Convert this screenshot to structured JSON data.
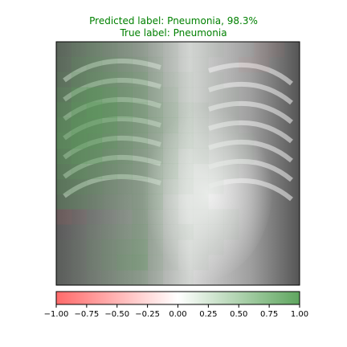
{
  "chart_data": {
    "type": "heatmap",
    "title_lines": [
      "Predicted label: Pneumonia, 98.3%",
      "True label: Pneumonia"
    ],
    "prediction": {
      "label": "Pneumonia",
      "confidence_percent": 98.3
    },
    "true_label": "Pneumonia",
    "colorbar": {
      "ticks": [
        -1.0,
        -0.75,
        -0.5,
        -0.25,
        0.0,
        0.25,
        0.5,
        0.75,
        1.0
      ],
      "tick_labels": [
        "−1.00",
        "−0.75",
        "−0.50",
        "−0.25",
        "0.00",
        "0.25",
        "0.50",
        "0.75",
        "1.00"
      ],
      "range": [
        -1,
        1
      ],
      "negative_color": "#ff0000",
      "zero_color": "#ffffff",
      "positive_color": "#006400"
    },
    "grid_size": [
      16,
      16
    ],
    "attribution_grid": [
      [
        0.2,
        0.3,
        0.35,
        0.3,
        0.25,
        0.2,
        0.15,
        0.1,
        0.05,
        0.05,
        0.05,
        0.0,
        0.0,
        -0.05,
        -0.05,
        0.0
      ],
      [
        0.25,
        0.4,
        0.45,
        0.4,
        0.35,
        0.3,
        0.2,
        0.1,
        0.05,
        0.05,
        0.0,
        0.0,
        -0.05,
        -0.05,
        0.0,
        0.0
      ],
      [
        0.35,
        0.5,
        0.55,
        0.55,
        0.45,
        0.4,
        0.25,
        0.15,
        0.1,
        0.05,
        0.05,
        0.0,
        0.0,
        0.0,
        0.0,
        0.0
      ],
      [
        0.5,
        0.7,
        0.8,
        0.7,
        0.55,
        0.45,
        0.3,
        0.2,
        0.1,
        0.05,
        0.05,
        0.05,
        0.0,
        0.0,
        0.0,
        0.0
      ],
      [
        0.6,
        0.8,
        0.9,
        0.8,
        0.6,
        0.5,
        0.35,
        0.25,
        0.15,
        0.1,
        0.05,
        0.05,
        0.0,
        0.0,
        0.0,
        0.0
      ],
      [
        0.7,
        0.85,
        0.85,
        0.75,
        0.55,
        0.45,
        0.35,
        0.25,
        0.15,
        0.1,
        0.05,
        0.05,
        0.0,
        0.0,
        0.0,
        0.0
      ],
      [
        0.75,
        0.85,
        0.8,
        0.65,
        0.5,
        0.4,
        0.3,
        0.2,
        0.15,
        0.1,
        0.05,
        0.05,
        0.05,
        0.0,
        0.0,
        0.0
      ],
      [
        0.65,
        0.75,
        0.7,
        0.55,
        0.45,
        0.35,
        0.3,
        0.2,
        0.1,
        0.1,
        0.05,
        0.05,
        0.05,
        0.0,
        0.0,
        0.0
      ],
      [
        0.55,
        0.6,
        0.55,
        0.45,
        0.4,
        0.35,
        0.25,
        0.2,
        0.1,
        0.05,
        0.05,
        0.05,
        0.0,
        0.0,
        0.0,
        0.0
      ],
      [
        0.45,
        0.45,
        0.4,
        0.35,
        0.3,
        0.3,
        0.25,
        0.15,
        0.1,
        0.05,
        0.05,
        0.0,
        0.0,
        0.0,
        0.0,
        0.0
      ],
      [
        0.35,
        0.35,
        0.3,
        0.25,
        0.25,
        0.3,
        0.25,
        0.1,
        0.05,
        0.05,
        0.0,
        0.0,
        0.0,
        0.0,
        0.0,
        0.0
      ],
      [
        -0.1,
        -0.05,
        0.05,
        0.1,
        0.15,
        0.3,
        0.2,
        0.1,
        0.05,
        0.05,
        0.05,
        0.05,
        0.0,
        0.0,
        0.0,
        0.0
      ],
      [
        0.0,
        0.05,
        0.15,
        0.2,
        0.25,
        0.35,
        0.2,
        0.1,
        0.1,
        0.05,
        0.05,
        0.05,
        0.0,
        0.0,
        0.0,
        0.0
      ],
      [
        0.05,
        0.1,
        0.2,
        0.3,
        0.35,
        0.4,
        0.2,
        0.1,
        0.05,
        0.05,
        0.05,
        0.0,
        0.0,
        0.0,
        0.0,
        0.0
      ],
      [
        0.05,
        0.1,
        0.2,
        0.3,
        0.4,
        0.45,
        0.2,
        0.1,
        0.05,
        0.05,
        0.0,
        0.0,
        0.0,
        0.0,
        0.0,
        0.0
      ],
      [
        0.05,
        0.1,
        0.15,
        0.2,
        0.25,
        0.25,
        0.15,
        0.05,
        0.05,
        0.0,
        0.0,
        0.0,
        0.0,
        0.0,
        0.0,
        0.0
      ]
    ]
  }
}
